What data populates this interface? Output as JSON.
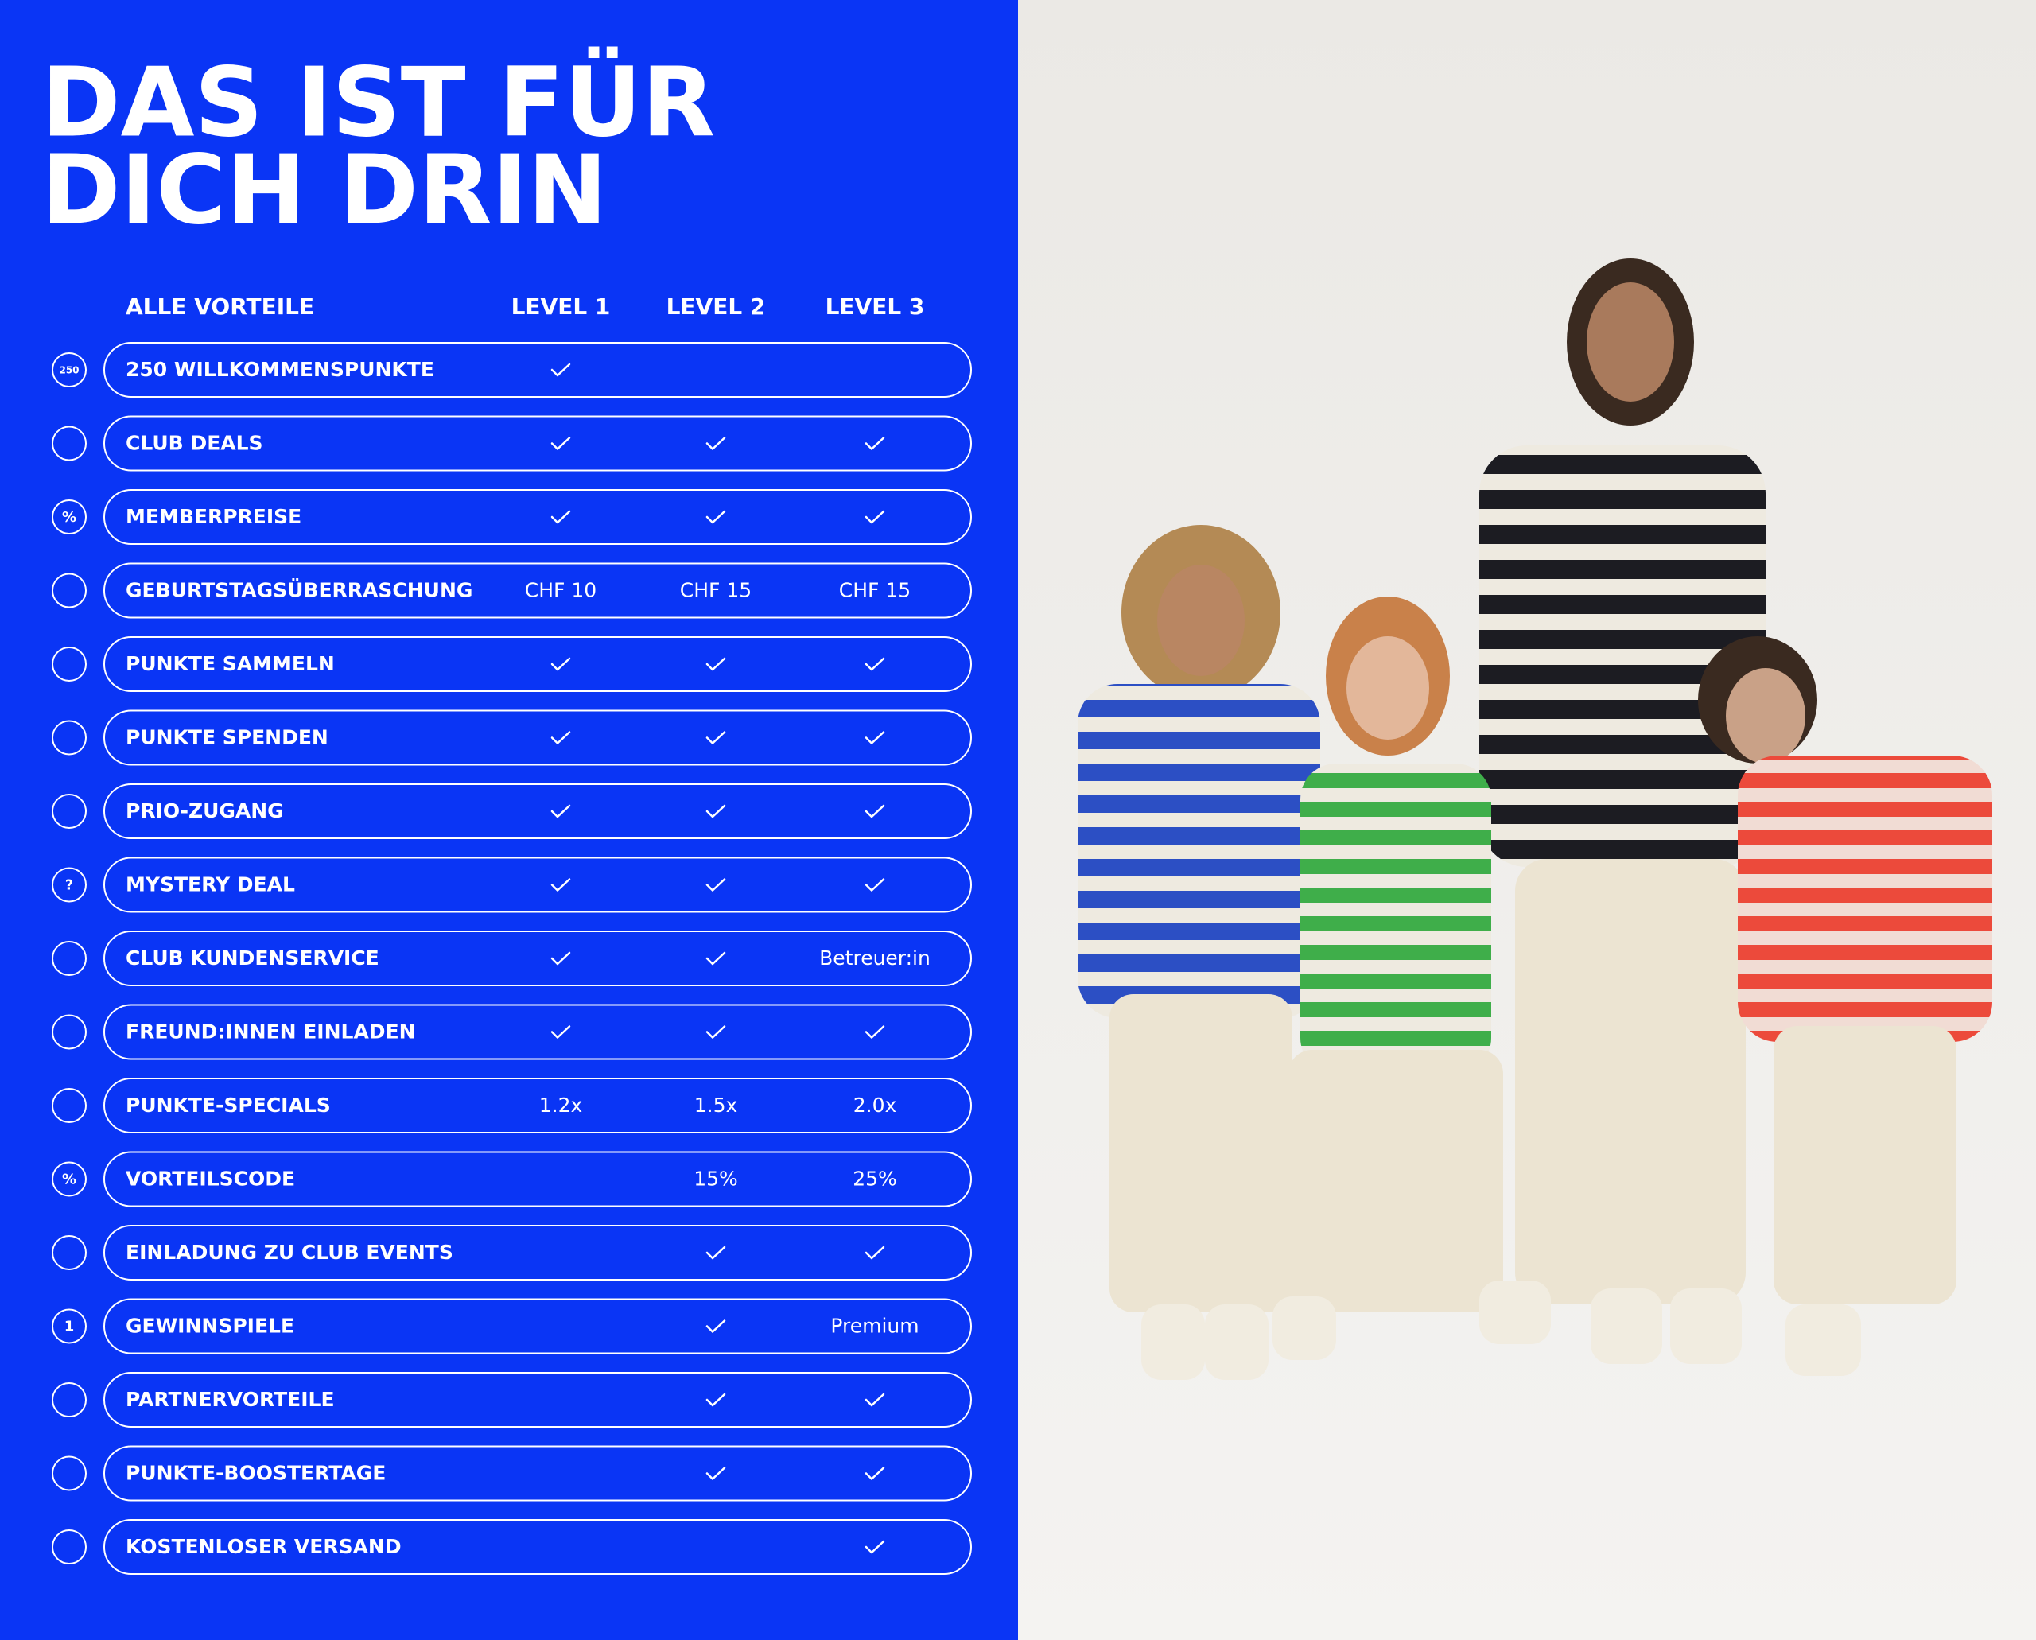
{
  "header": {
    "title_lines": [
      "DAS IST FÜR",
      "DICH DRIN"
    ]
  },
  "table": {
    "columns": [
      "ALLE VORTEILE",
      "LEVEL 1",
      "LEVEL 2",
      "LEVEL 3"
    ],
    "rows": [
      {
        "name": "250 WILLKOMMENSPUNKTE",
        "icon_text": "250",
        "cells": [
          true,
          null,
          null
        ]
      },
      {
        "name": "CLUB DEALS",
        "cells": [
          true,
          true,
          true
        ]
      },
      {
        "name": "MEMBERPREISE",
        "icon_text": "%",
        "cells": [
          true,
          true,
          true
        ]
      },
      {
        "name": "GEBURTSTAGSÜBERRASCHUNG",
        "cells": [
          "CHF 10",
          "CHF 15",
          "CHF 15"
        ]
      },
      {
        "name": "PUNKTE SAMMELN",
        "cells": [
          true,
          true,
          true
        ]
      },
      {
        "name": "PUNKTE SPENDEN",
        "cells": [
          true,
          true,
          true
        ]
      },
      {
        "name": "PRIO-ZUGANG",
        "cells": [
          true,
          true,
          true
        ]
      },
      {
        "name": "MYSTERY DEAL",
        "icon_text": "?",
        "cells": [
          true,
          true,
          true
        ]
      },
      {
        "name": "CLUB KUNDENSERVICE",
        "cells": [
          true,
          true,
          "Betreuer:in"
        ]
      },
      {
        "name": "FREUND:INNEN EINLADEN",
        "cells": [
          true,
          true,
          true
        ]
      },
      {
        "name": "PUNKTE-SPECIALS",
        "cells": [
          "1.2x",
          "1.5x",
          "2.0x"
        ]
      },
      {
        "name": "VORTEILSCODE",
        "icon_text": "%",
        "cells": [
          null,
          "15%",
          "25%"
        ]
      },
      {
        "name": "EINLADUNG ZU CLUB EVENTS",
        "cells": [
          null,
          true,
          true
        ]
      },
      {
        "name": "GEWINNSPIELE",
        "icon_text": "1",
        "cells": [
          null,
          true,
          "Premium"
        ]
      },
      {
        "name": "PARTNERVORTEILE",
        "cells": [
          null,
          true,
          true
        ]
      },
      {
        "name": "PUNKTE-BOOSTERTAGE",
        "cells": [
          null,
          true,
          true
        ]
      },
      {
        "name": "KOSTENLOSER VERSAND",
        "cells": [
          null,
          null,
          true
        ]
      }
    ]
  }
}
